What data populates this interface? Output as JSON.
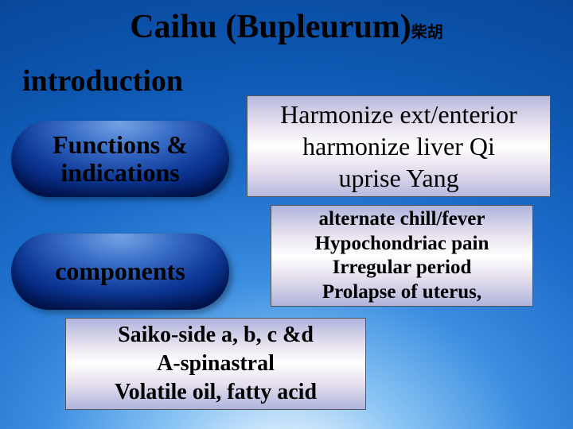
{
  "title_main": "Caihu (Bupleurum)",
  "title_cjk": "柴胡",
  "intro": "introduction",
  "pills": {
    "functions": {
      "line1": "Functions &",
      "line2": "indications"
    },
    "components": {
      "line1": "components"
    }
  },
  "boxes": {
    "harmonize": {
      "l1": "Harmonize ext/enterior",
      "l2": "harmonize liver Qi",
      "l3": "uprise Yang"
    },
    "symptoms": {
      "l1": "alternate chill/fever",
      "l2": "Hypochondriac pain",
      "l3": "Irregular period",
      "l4": "Prolapse of uterus,"
    },
    "components": {
      "l1": "Saiko-side a, b, c &d",
      "l2": "A-spinastral",
      "l3": "Volatile oil,   fatty acid"
    }
  },
  "colors": {
    "bg_outer": "#074494",
    "bg_inner": "#89c4f4",
    "pill_top": "#7aa8e8",
    "pill_bottom": "#001a66",
    "box_edge": "#aeb4dc",
    "box_mid": "#ffffff",
    "text": "#000000"
  },
  "fonts": {
    "family": "Times New Roman",
    "title_pt": 42,
    "intro_pt": 38,
    "pill_pt": 32,
    "box_large_pt": 32,
    "box_small_pt": 25,
    "box_components_pt": 28
  }
}
